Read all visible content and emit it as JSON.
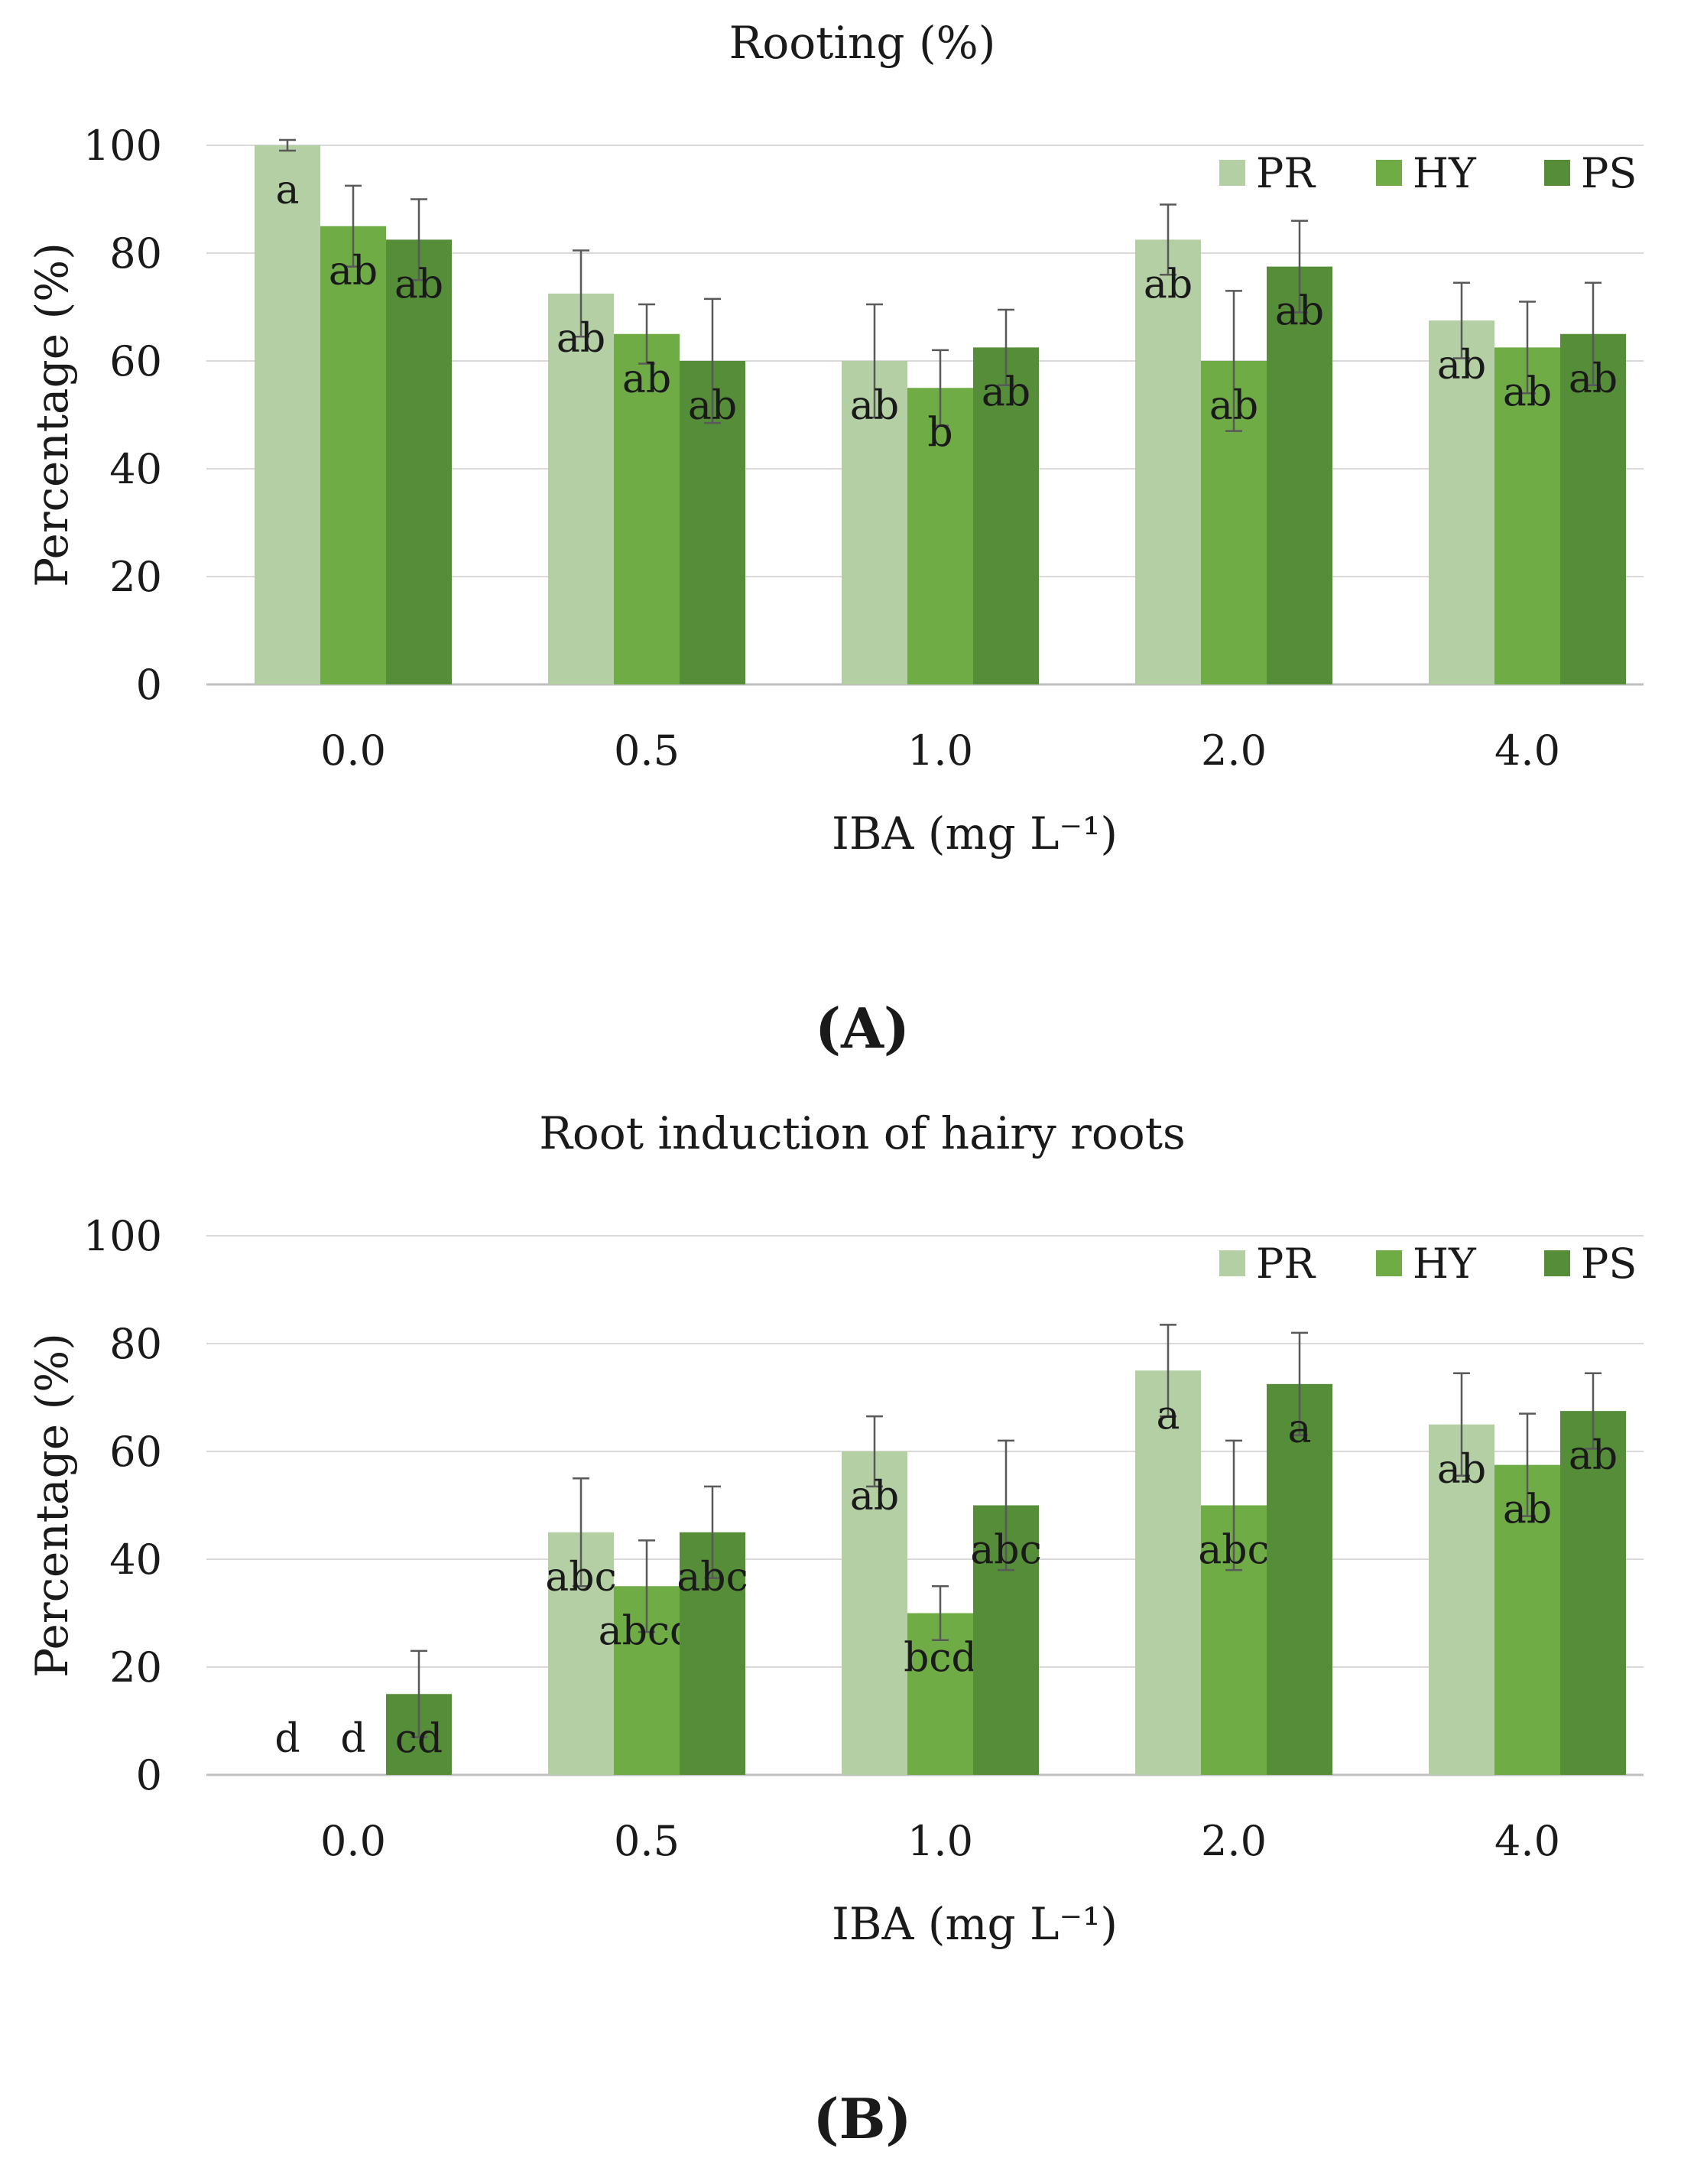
{
  "colors": {
    "PR": "#b3cfa3",
    "HY": "#6fac46",
    "PS": "#568d38",
    "grid": "#d9d9d9",
    "axis": "#bfbfbf",
    "error": "#595959"
  },
  "chart_data": [
    {
      "type": "bar",
      "title": "Rooting (%)",
      "panel_label": "(A)",
      "xlabel": "IBA (mg L⁻¹)",
      "ylabel": "Percentage (%)",
      "ylim": [
        0,
        100
      ],
      "yticks": [
        "0",
        "20",
        "40",
        "60",
        "80",
        "100"
      ],
      "categories": [
        "0.0",
        "0.5",
        "1.0",
        "2.0",
        "4.0"
      ],
      "legend_position": "top-right",
      "series": [
        {
          "name": "PR",
          "values": [
            100,
            72.5,
            60,
            82.5,
            67.5
          ],
          "errors": [
            1,
            8,
            10.5,
            6.5,
            7
          ],
          "letters": [
            "a",
            "ab",
            "ab",
            "ab",
            "ab"
          ]
        },
        {
          "name": "HY",
          "values": [
            85,
            65,
            55,
            60,
            62.5
          ],
          "errors": [
            7.5,
            5.5,
            7,
            13,
            8.5
          ],
          "letters": [
            "ab",
            "ab",
            "b",
            "ab",
            "ab"
          ]
        },
        {
          "name": "PS",
          "values": [
            82.5,
            60,
            62.5,
            77.5,
            65
          ],
          "errors": [
            7.5,
            11.5,
            7,
            8.5,
            9.5
          ],
          "letters": [
            "ab",
            "ab",
            "ab",
            "ab",
            "ab"
          ]
        }
      ]
    },
    {
      "type": "bar",
      "title": "Root induction of hairy roots",
      "panel_label": "(B)",
      "xlabel": "IBA (mg L⁻¹)",
      "ylabel": "Percentage (%)",
      "ylim": [
        0,
        100
      ],
      "yticks": [
        "0",
        "20",
        "40",
        "60",
        "80",
        "100"
      ],
      "categories": [
        "0.0",
        "0.5",
        "1.0",
        "2.0",
        "4.0"
      ],
      "legend_position": "top-right",
      "series": [
        {
          "name": "PR",
          "values": [
            0,
            45,
            60,
            75,
            65
          ],
          "errors": [
            0,
            10,
            6.5,
            8.5,
            9.5
          ],
          "letters": [
            "d",
            "abc",
            "ab",
            "a",
            "ab"
          ]
        },
        {
          "name": "HY",
          "values": [
            0,
            35,
            30,
            50,
            57.5
          ],
          "errors": [
            0,
            8.5,
            5,
            12,
            9.5
          ],
          "letters": [
            "d",
            "abcd",
            "bcd",
            "abc",
            "ab"
          ]
        },
        {
          "name": "PS",
          "values": [
            15,
            45,
            50,
            72.5,
            67.5
          ],
          "errors": [
            8,
            8.5,
            12,
            9.5,
            7
          ],
          "letters": [
            "cd",
            "abc",
            "abc",
            "a",
            "ab"
          ]
        }
      ]
    }
  ]
}
